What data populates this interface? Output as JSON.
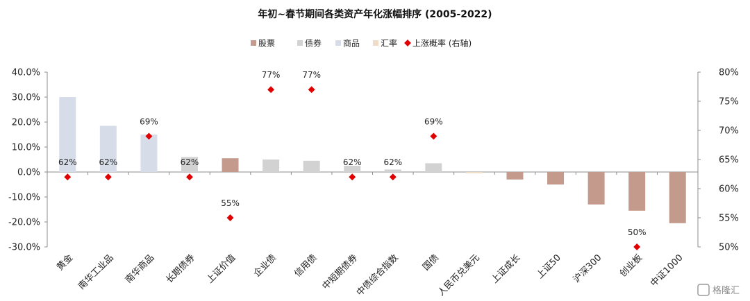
{
  "watermark": "格隆汇",
  "chart_data": {
    "type": "bar",
    "title": "年初~春节期间各类资产年化涨幅排序 (2005-2022)",
    "categories": [
      "黄金",
      "南华工业品",
      "南华商品",
      "长期债券",
      "上证价值",
      "企业债",
      "信用债",
      "中短期债券",
      "中债综合指数",
      "国债",
      "人民币兑美元",
      "上证成长",
      "上证50",
      "沪深300",
      "创业板",
      "中证1000"
    ],
    "asset_class": [
      "商品",
      "商品",
      "商品",
      "债券",
      "股票",
      "债券",
      "债券",
      "债券",
      "债券",
      "债券",
      "汇率",
      "股票",
      "股票",
      "股票",
      "股票",
      "股票"
    ],
    "values": [
      30.0,
      18.5,
      15.0,
      6.0,
      5.5,
      5.0,
      4.5,
      2.5,
      1.0,
      3.5,
      -0.5,
      -3.0,
      -5.0,
      -13.0,
      -15.5,
      -20.5
    ],
    "up_prob": [
      62,
      62,
      69,
      62,
      55,
      77,
      77,
      62,
      62,
      69,
      null,
      null,
      null,
      null,
      50,
      null
    ],
    "up_prob_labels": [
      "62%",
      "62%",
      "69%",
      "62%",
      "55%",
      "77%",
      "77%",
      "62%",
      "62%",
      "69%",
      "",
      "",
      "",
      "",
      "50%",
      ""
    ],
    "ylim_left": [
      -30,
      40
    ],
    "left_ticks": [
      "-30.0%",
      "-20.0%",
      "-10.0%",
      "0.0%",
      "10.0%",
      "20.0%",
      "30.0%",
      "40.0%"
    ],
    "ylim_right": [
      50,
      80
    ],
    "right_ticks": [
      "50%",
      "55%",
      "60%",
      "65%",
      "70%",
      "75%",
      "80%"
    ],
    "legend": [
      {
        "label": "股票",
        "kind": "square",
        "color": "#c49a8c"
      },
      {
        "label": "债券",
        "kind": "square",
        "color": "#d2d2d2"
      },
      {
        "label": "商品",
        "kind": "square",
        "color": "#d6dce8"
      },
      {
        "label": "汇率",
        "kind": "square",
        "color": "#eedcc6"
      },
      {
        "label": "上涨概率 (右轴)",
        "kind": "diamond",
        "color": "#e00000"
      }
    ],
    "colors": {
      "股票": "#c49a8c",
      "债券": "#d2d2d2",
      "商品": "#d6dce8",
      "汇率": "#eedcc6",
      "marker": "#e00000"
    },
    "legend_position": "top-center",
    "grid": false
  }
}
